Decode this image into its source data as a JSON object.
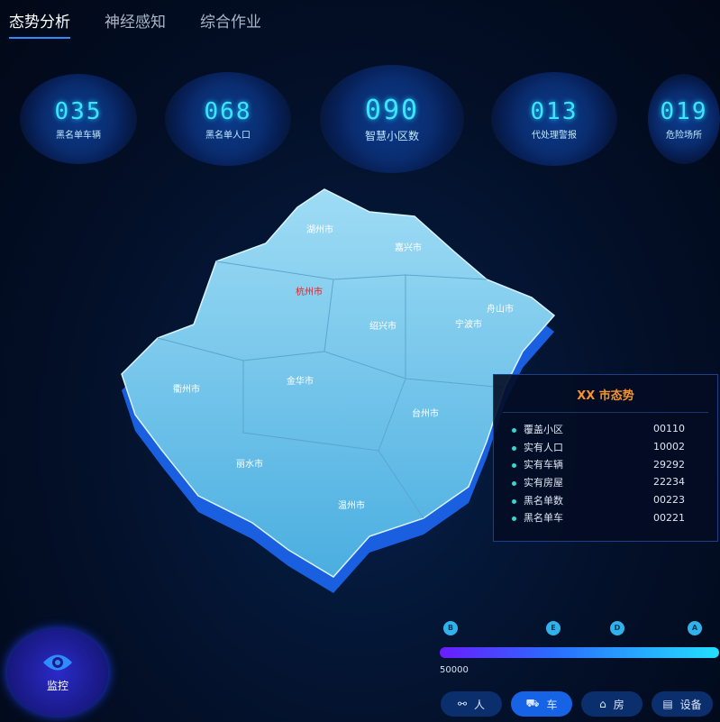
{
  "tabs": [
    {
      "label": "态势分析",
      "active": true
    },
    {
      "label": "神经感知",
      "active": false
    },
    {
      "label": "综合作业",
      "active": false
    }
  ],
  "stats": [
    {
      "value": "035",
      "label": "黑名单车辆"
    },
    {
      "value": "068",
      "label": "黑名单人口"
    },
    {
      "value": "090",
      "label": "智慧小区数"
    },
    {
      "value": "013",
      "label": "代处理警报"
    },
    {
      "value": "019",
      "label": "危险场所"
    }
  ],
  "map": {
    "cities": [
      "湖州市",
      "嘉兴市",
      "杭州市",
      "舟山市",
      "绍兴市",
      "宁波市",
      "衢州市",
      "金华市",
      "台州市",
      "丽水市",
      "温州市"
    ],
    "highlight": "杭州市",
    "highlight_color": "#e02020"
  },
  "panel": {
    "title": "XX 市态势",
    "rows": [
      {
        "label": "覆盖小区",
        "value": "00110"
      },
      {
        "label": "实有人口",
        "value": "10002"
      },
      {
        "label": "实有车辆",
        "value": "29292"
      },
      {
        "label": "实有房屋",
        "value": "22234"
      },
      {
        "label": "黑名单数",
        "value": "00223"
      },
      {
        "label": "黑名单车",
        "value": "00221"
      }
    ]
  },
  "timeline": {
    "markers": [
      "B",
      "E",
      "D",
      "A"
    ],
    "value": "50000"
  },
  "categories": [
    {
      "label": "人",
      "icon": "person-icon"
    },
    {
      "label": "车",
      "icon": "car-icon",
      "active": true
    },
    {
      "label": "房",
      "icon": "house-icon"
    },
    {
      "label": "设备",
      "icon": "device-icon"
    }
  ],
  "monitor": {
    "label": "监控",
    "icon": "eye-icon"
  }
}
